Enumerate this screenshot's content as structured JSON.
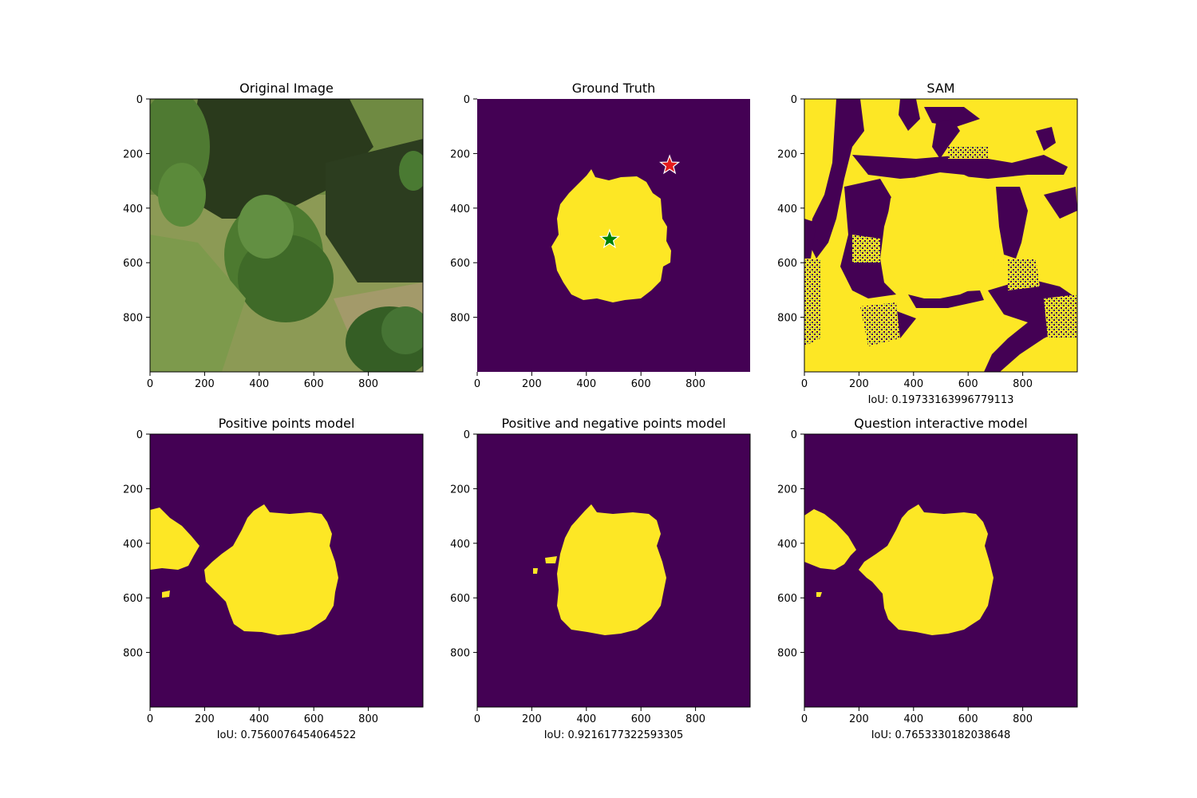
{
  "colors": {
    "background": "#440154",
    "foreground": "#fde725",
    "noise": "#21918c",
    "axis": "#000000",
    "star_positive": "#008000",
    "star_negative": "#e41a1c"
  },
  "chart_data": [
    {
      "type": "image",
      "title": "Original Image",
      "content": "aerial photo of trees and grass",
      "xticks": [
        0,
        200,
        400,
        600,
        800
      ],
      "yticks": [
        0,
        200,
        400,
        600,
        800
      ],
      "xlim": [
        0,
        1000
      ],
      "ylim": [
        1000,
        0
      ],
      "caption": ""
    },
    {
      "type": "heatmap",
      "title": "Ground Truth",
      "xticks": [
        0,
        200,
        400,
        600,
        800
      ],
      "yticks": [
        0,
        200,
        400,
        600,
        800
      ],
      "xlim": [
        0,
        1000
      ],
      "ylim": [
        1000,
        0
      ],
      "caption": "",
      "markers": [
        {
          "kind": "positive",
          "x": 485,
          "y": 515,
          "color": "#008000"
        },
        {
          "kind": "negative",
          "x": 705,
          "y": 243,
          "color": "#e41a1c"
        }
      ]
    },
    {
      "type": "heatmap",
      "title": "SAM",
      "xticks": [
        0,
        200,
        400,
        600,
        800
      ],
      "yticks": [
        0,
        200,
        400,
        600,
        800
      ],
      "xlim": [
        0,
        1000
      ],
      "ylim": [
        1000,
        0
      ],
      "caption": "IoU: 0.19733163996779113"
    },
    {
      "type": "heatmap",
      "title": "Positive points model",
      "xticks": [
        0,
        200,
        400,
        600,
        800
      ],
      "yticks": [
        0,
        200,
        400,
        600,
        800
      ],
      "xlim": [
        0,
        1000
      ],
      "ylim": [
        1000,
        0
      ],
      "caption": "IoU: 0.7560076454064522"
    },
    {
      "type": "heatmap",
      "title": "Positive and negative points model",
      "xticks": [
        0,
        200,
        400,
        600,
        800
      ],
      "yticks": [
        0,
        200,
        400,
        600,
        800
      ],
      "xlim": [
        0,
        1000
      ],
      "ylim": [
        1000,
        0
      ],
      "caption": "IoU: 0.9216177322593305"
    },
    {
      "type": "heatmap",
      "title": "Question interactive model",
      "xticks": [
        0,
        200,
        400,
        600,
        800
      ],
      "yticks": [
        0,
        200,
        400,
        600,
        800
      ],
      "xlim": [
        0,
        1000
      ],
      "ylim": [
        1000,
        0
      ],
      "caption": "IoU: 0.7653330182038648"
    }
  ]
}
